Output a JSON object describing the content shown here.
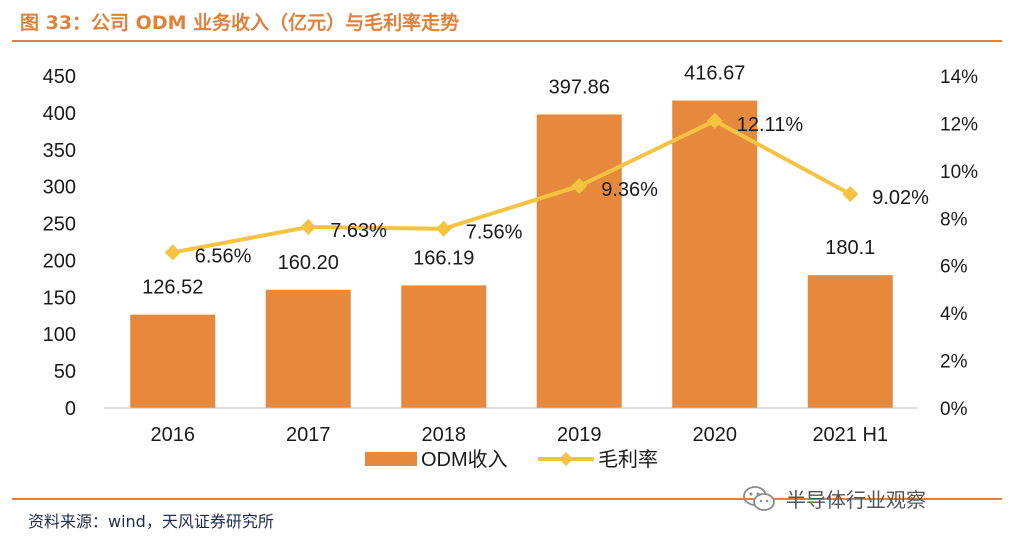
{
  "title": "图 33：公司 ODM 业务收入（亿元）与毛利率走势",
  "source": "资料来源：wind，天风证券研究所",
  "watermark": {
    "text": "半导体行业观察",
    "icon": "wechat-icon"
  },
  "colors": {
    "bar": "#e6893c",
    "line": "#f5c242",
    "accent": "#e0813b",
    "text": "#1a1a1a"
  },
  "chart_data": {
    "type": "bar",
    "categories": [
      "2016",
      "2017",
      "2018",
      "2019",
      "2020",
      "2021 H1"
    ],
    "series": [
      {
        "name": "ODM收入",
        "kind": "bar",
        "axis": "left",
        "values": [
          126.52,
          160.2,
          166.19,
          397.86,
          416.67,
          180.1
        ],
        "labels": [
          "126.52",
          "160.20",
          "166.19",
          "397.86",
          "416.67",
          "180.1"
        ]
      },
      {
        "name": "毛利率",
        "kind": "line",
        "axis": "right",
        "values": [
          6.56,
          7.63,
          7.56,
          9.36,
          12.11,
          9.02
        ],
        "labels": [
          "6.56%",
          "7.63%",
          "7.56%",
          "9.36%",
          "12.11%",
          "9.02%"
        ]
      }
    ],
    "y_left": {
      "min": 0,
      "max": 450,
      "ticks": [
        "0",
        "50",
        "100",
        "150",
        "200",
        "250",
        "300",
        "350",
        "400",
        "450"
      ]
    },
    "y_right": {
      "min": 0,
      "max": 14,
      "ticks": [
        "0%",
        "2%",
        "4%",
        "6%",
        "8%",
        "10%",
        "12%",
        "14%"
      ]
    },
    "legend_position": "bottom-center",
    "grid": false
  }
}
